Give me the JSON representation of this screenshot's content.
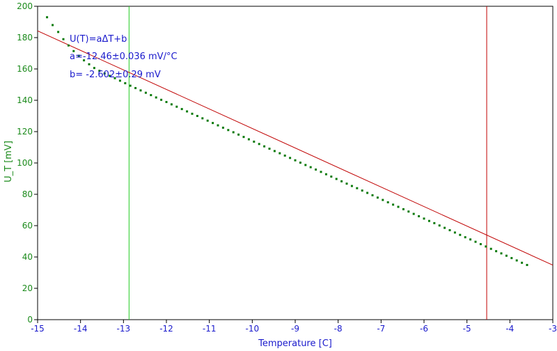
{
  "chart_data": {
    "type": "scatter",
    "title": "",
    "xlabel": "Temperature [C]",
    "ylabel": "U_T [mV]",
    "xlim": [
      -15,
      -3
    ],
    "ylim": [
      0,
      200
    ],
    "xticks": [
      -15,
      -14,
      -13,
      -12,
      -11,
      -10,
      -9,
      -8,
      -7,
      -6,
      -5,
      -4,
      -3
    ],
    "yticks": [
      0,
      20,
      40,
      60,
      80,
      100,
      120,
      140,
      160,
      180,
      200
    ],
    "grid": false,
    "colors": {
      "x_axis": "#1a1acc",
      "y_axis": "#1a8a1a",
      "points": "#0a7a0a",
      "fit_line": "#c00000",
      "cursor_left": "#22cc22",
      "cursor_right": "#c00000",
      "annotation": "#1a1acc"
    },
    "series": [
      {
        "kind": "measured",
        "x": [
          -14.78,
          -14.65,
          -14.52,
          -14.4,
          -14.28,
          -14.16,
          -14.04,
          -13.92,
          -13.8,
          -13.68,
          -13.56,
          -13.44,
          -13.32,
          -13.2,
          -13.08,
          -12.96,
          -12.84,
          -12.72,
          -12.6,
          -12.48,
          -12.36,
          -12.24,
          -12.12,
          -12.0,
          -11.88,
          -11.76,
          -11.64,
          -11.52,
          -11.4,
          -11.28,
          -11.16,
          -11.04,
          -10.92,
          -10.8,
          -10.68,
          -10.56,
          -10.44,
          -10.32,
          -10.2,
          -10.08,
          -9.96,
          -9.84,
          -9.72,
          -9.6,
          -9.48,
          -9.36,
          -9.24,
          -9.12,
          -9.0,
          -8.88,
          -8.76,
          -8.64,
          -8.52,
          -8.4,
          -8.28,
          -8.16,
          -8.04,
          -7.92,
          -7.8,
          -7.68,
          -7.56,
          -7.44,
          -7.32,
          -7.2,
          -7.08,
          -6.96,
          -6.84,
          -6.72,
          -6.6,
          -6.48,
          -6.36,
          -6.24,
          -6.12,
          -6.0,
          -5.88,
          -5.76,
          -5.64,
          -5.52,
          -5.4,
          -5.28,
          -5.16,
          -5.04,
          -4.92,
          -4.8,
          -4.68,
          -4.56,
          -4.44,
          -4.32,
          -4.2,
          -4.08,
          -3.96,
          -3.84,
          -3.72,
          -3.6
        ],
        "y": [
          193.0,
          188.0,
          183.6,
          179.0,
          175.0,
          171.4,
          168.4,
          165.5,
          163.0,
          160.6,
          158.8,
          157.1,
          155.6,
          154.1,
          152.5,
          150.9,
          149.3,
          147.8,
          146.3,
          144.8,
          143.3,
          141.8,
          140.3,
          138.9,
          137.4,
          135.9,
          134.4,
          132.9,
          131.4,
          130.0,
          128.5,
          127.0,
          125.5,
          124.0,
          122.5,
          121.0,
          119.6,
          118.1,
          116.6,
          115.1,
          113.6,
          112.1,
          110.6,
          109.1,
          107.6,
          106.2,
          104.7,
          103.2,
          101.7,
          100.2,
          98.7,
          97.3,
          95.8,
          94.3,
          92.8,
          91.3,
          89.8,
          88.3,
          86.8,
          85.3,
          83.9,
          82.4,
          80.9,
          79.4,
          77.9,
          76.4,
          74.9,
          73.4,
          72.0,
          70.5,
          69.0,
          67.5,
          66.0,
          64.5,
          63.0,
          61.6,
          60.1,
          58.6,
          57.1,
          55.6,
          54.1,
          52.6,
          51.2,
          49.7,
          48.2,
          46.7,
          45.2,
          43.7,
          42.3,
          40.8,
          39.3,
          37.8,
          36.3,
          34.9
        ]
      },
      {
        "kind": "fit",
        "x": [
          -15,
          -3
        ],
        "y": [
          184.3,
          34.8
        ]
      }
    ],
    "cursors": [
      {
        "name": "left",
        "x": -12.87
      },
      {
        "name": "right",
        "x": -4.54
      }
    ],
    "annotations": [
      "U(T)=aΔT+b",
      "a=-12.46±0.036 mV/°C",
      "b= -2.602±0.29 mV"
    ]
  }
}
